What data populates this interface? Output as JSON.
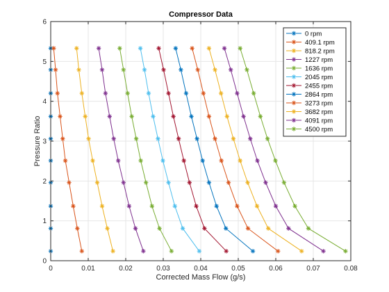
{
  "chart_data": {
    "type": "line",
    "title": "Compressor Data",
    "xlabel": "Corrected Mass Flow (g/s)",
    "ylabel": "Pressure Ratio",
    "xlim": [
      0,
      0.08
    ],
    "ylim": [
      0,
      6
    ],
    "xticks": [
      "0",
      "0.01",
      "0.02",
      "0.03",
      "0.04",
      "0.05",
      "0.06",
      "0.07",
      "0.08"
    ],
    "yticks": [
      "0",
      "1",
      "2",
      "3",
      "4",
      "5",
      "6"
    ],
    "grid": true,
    "legend_position": "top-right",
    "marker": "asterisk",
    "y": [
      5.33,
      4.79,
      4.2,
      3.62,
      3.06,
      2.51,
      1.96,
      1.37,
      0.81,
      0.24
    ],
    "series": [
      {
        "name": "0 rpm",
        "color": "#0072BD",
        "x": [
          0,
          0,
          0,
          0,
          0,
          0,
          0,
          0,
          0,
          0
        ]
      },
      {
        "name": "409.1 rpm",
        "color": "#D95319",
        "x": [
          0.0008,
          0.0013,
          0.0018,
          0.0025,
          0.0032,
          0.0039,
          0.0049,
          0.006,
          0.0071,
          0.0083
        ]
      },
      {
        "name": "818.2 rpm",
        "color": "#EDB120",
        "x": [
          0.0069,
          0.0075,
          0.0083,
          0.0092,
          0.0101,
          0.0112,
          0.0124,
          0.0137,
          0.0151,
          0.0166
        ]
      },
      {
        "name": "1227 rpm",
        "color": "#7E2F8E",
        "x": [
          0.0128,
          0.0137,
          0.0146,
          0.0157,
          0.0168,
          0.018,
          0.0194,
          0.0209,
          0.0226,
          0.0247
        ]
      },
      {
        "name": "1636 rpm",
        "color": "#77AC30",
        "x": [
          0.0184,
          0.0194,
          0.0205,
          0.0216,
          0.0228,
          0.024,
          0.0254,
          0.027,
          0.029,
          0.0322
        ]
      },
      {
        "name": "2045 rpm",
        "color": "#4DBEEE",
        "x": [
          0.0239,
          0.025,
          0.0261,
          0.0273,
          0.0286,
          0.0299,
          0.0314,
          0.0331,
          0.0352,
          0.0396
        ]
      },
      {
        "name": "2455 rpm",
        "color": "#A2142F",
        "x": [
          0.0288,
          0.0301,
          0.0314,
          0.0327,
          0.0341,
          0.0355,
          0.037,
          0.0388,
          0.041,
          0.0468
        ]
      },
      {
        "name": "2864 rpm",
        "color": "#0072BD",
        "x": [
          0.0333,
          0.0347,
          0.0361,
          0.0375,
          0.039,
          0.0405,
          0.0422,
          0.0442,
          0.0467,
          0.0539
        ]
      },
      {
        "name": "3273 rpm",
        "color": "#D95319",
        "x": [
          0.0377,
          0.0392,
          0.0407,
          0.0422,
          0.0438,
          0.0455,
          0.0474,
          0.0497,
          0.0526,
          0.0606
        ]
      },
      {
        "name": "3682 rpm",
        "color": "#EDB120",
        "x": [
          0.0422,
          0.0438,
          0.0454,
          0.047,
          0.0487,
          0.0505,
          0.0525,
          0.055,
          0.058,
          0.0669
        ]
      },
      {
        "name": "4091 rpm",
        "color": "#7E2F8E",
        "x": [
          0.0463,
          0.048,
          0.0497,
          0.0514,
          0.0532,
          0.0551,
          0.0573,
          0.06,
          0.0634,
          0.0727
        ]
      },
      {
        "name": "4500 rpm",
        "color": "#77AC30",
        "x": [
          0.0505,
          0.0523,
          0.0541,
          0.0559,
          0.0578,
          0.0599,
          0.0622,
          0.0651,
          0.0687,
          0.0786
        ]
      }
    ]
  }
}
